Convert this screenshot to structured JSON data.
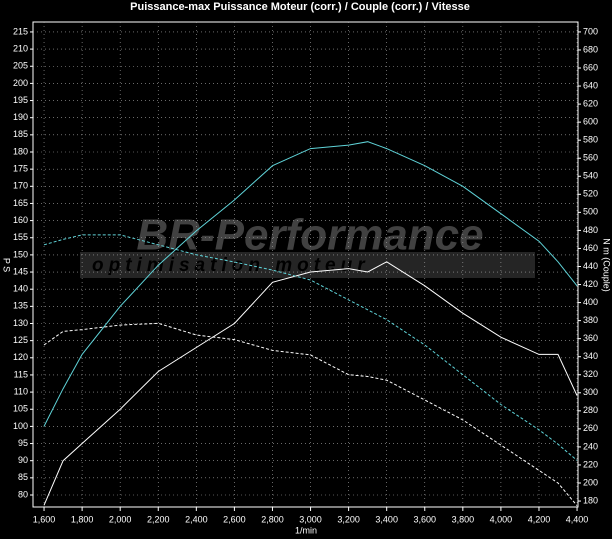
{
  "chart_data": {
    "type": "line",
    "title": "Puissance-max Puissance Moteur (corr.) / Couple (corr.) / Vitesse",
    "xlabel": "1/min",
    "ylabel": "P S",
    "y2label": "N m (Couple)",
    "watermark": {
      "brand": "BR-Performance",
      "tagline": "optimisation moteur"
    },
    "x": [
      1600,
      1700,
      1800,
      2000,
      2200,
      2400,
      2600,
      2800,
      3000,
      3200,
      3300,
      3400,
      3600,
      3800,
      4000,
      4200,
      4300,
      4400
    ],
    "xlim": [
      1542,
      4405
    ],
    "xticks": [
      {
        "value": 1600,
        "label": "1,600"
      },
      {
        "value": 1800,
        "label": "1,800"
      },
      {
        "value": 2000,
        "label": "2,000"
      },
      {
        "value": 2200,
        "label": "2,200"
      },
      {
        "value": 2400,
        "label": "2,400"
      },
      {
        "value": 2600,
        "label": "2,600"
      },
      {
        "value": 2800,
        "label": "2,800"
      },
      {
        "value": 3000,
        "label": "3,000"
      },
      {
        "value": 3200,
        "label": "3,200"
      },
      {
        "value": 3400,
        "label": "3,400"
      },
      {
        "value": 3600,
        "label": "3,600"
      },
      {
        "value": 3800,
        "label": "3,800"
      },
      {
        "value": 4000,
        "label": "4,000"
      },
      {
        "value": 4200,
        "label": "4,200"
      },
      {
        "value": 4400,
        "label": "4,400"
      }
    ],
    "ylim": [
      76.5,
      217.9
    ],
    "yticks": [
      80,
      85,
      90,
      95,
      100,
      105,
      110,
      115,
      120,
      125,
      130,
      135,
      140,
      145,
      150,
      155,
      160,
      165,
      170,
      175,
      180,
      185,
      190,
      195,
      200,
      205,
      210,
      215
    ],
    "y2lim": [
      173.4,
      711
    ],
    "y2ticks": [
      180,
      200,
      220,
      240,
      260,
      280,
      300,
      320,
      340,
      360,
      380,
      400,
      420,
      440,
      460,
      480,
      500,
      520,
      540,
      560,
      580,
      600,
      620,
      640,
      660,
      680,
      700
    ],
    "grid": true,
    "series": [
      {
        "color": "#ffffff",
        "dash": false,
        "axis": "y",
        "values": [
          77,
          90,
          95,
          105,
          116,
          123,
          130,
          142,
          145,
          146,
          145,
          148,
          141,
          133,
          126,
          121,
          121,
          109
        ]
      },
      {
        "color": "#ffffff",
        "dash": true,
        "axis": "y2",
        "values": [
          353,
          368,
          370,
          375,
          377,
          364,
          359,
          347,
          342,
          320,
          318,
          314,
          292,
          270,
          242,
          214,
          200,
          175
        ]
      },
      {
        "color": "#5fd3d8",
        "dash": false,
        "axis": "y",
        "values": [
          100,
          111,
          121,
          135,
          147,
          157,
          166,
          176,
          181,
          182,
          183,
          181,
          176,
          170,
          162,
          154,
          148,
          141
        ]
      },
      {
        "color": "#5fd3d8",
        "dash": true,
        "axis": "y2",
        "values": [
          464,
          470,
          475,
          475,
          464,
          453,
          445,
          436,
          425,
          403,
          392,
          381,
          353,
          320,
          287,
          259,
          243,
          225
        ]
      }
    ]
  }
}
